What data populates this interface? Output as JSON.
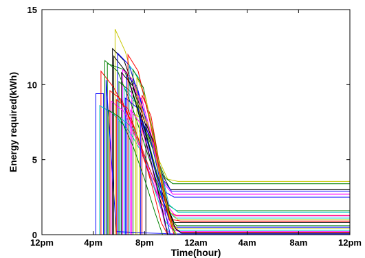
{
  "chart_data": {
    "type": "line",
    "title": "",
    "xlabel": "Time(hour)",
    "ylabel": "Energy required(kWh)",
    "xlim": [
      0,
      24
    ],
    "ylim": [
      0,
      15
    ],
    "grid": false,
    "legend": "none",
    "x_ticks": [
      {
        "value": 0,
        "label": "12pm"
      },
      {
        "value": 4,
        "label": "4pm"
      },
      {
        "value": 8,
        "label": "8pm"
      },
      {
        "value": 12,
        "label": "12am"
      },
      {
        "value": 16,
        "label": "4am"
      },
      {
        "value": 20,
        "label": "8am"
      },
      {
        "value": 24,
        "label": "12pm"
      }
    ],
    "y_ticks": [
      {
        "value": 0,
        "label": "0"
      },
      {
        "value": 5,
        "label": "5"
      },
      {
        "value": 10,
        "label": "10"
      },
      {
        "value": 15,
        "label": "15"
      }
    ],
    "series": [
      {
        "color": "#0000ff",
        "points": [
          [
            0,
            0
          ],
          [
            4.2,
            0
          ],
          [
            4.2,
            9.4
          ],
          [
            4.8,
            9.4
          ],
          [
            4.8,
            0
          ]
        ]
      },
      {
        "color": "#c8c800",
        "points": [
          [
            0,
            0
          ],
          [
            5.7,
            0
          ],
          [
            5.7,
            13.7
          ],
          [
            6.5,
            12.2
          ],
          [
            7.3,
            9.8
          ],
          [
            8.2,
            7.2
          ],
          [
            9.1,
            5.0
          ],
          [
            9.8,
            3.7
          ],
          [
            10.6,
            3.55
          ],
          [
            24,
            3.55
          ]
        ]
      },
      {
        "color": "#008000",
        "points": [
          [
            0,
            0
          ],
          [
            5.1,
            0
          ],
          [
            5.1,
            11.4
          ],
          [
            6.4,
            11.0
          ],
          [
            7.4,
            8.7
          ],
          [
            8.4,
            6.2
          ],
          [
            9.6,
            3.8
          ],
          [
            10.2,
            3.4
          ],
          [
            24,
            3.4
          ]
        ]
      },
      {
        "color": "#000000",
        "points": [
          [
            0,
            0
          ],
          [
            5.5,
            0
          ],
          [
            5.5,
            12.4
          ],
          [
            6.4,
            11.6
          ],
          [
            7.4,
            9.2
          ],
          [
            8.4,
            6.4
          ],
          [
            9.4,
            4.0
          ],
          [
            10.0,
            3.0
          ],
          [
            24,
            3.0
          ]
        ]
      },
      {
        "color": "#0000ff",
        "points": [
          [
            0,
            0
          ],
          [
            5.9,
            0
          ],
          [
            5.9,
            12.1
          ],
          [
            6.8,
            11.3
          ],
          [
            7.8,
            8.6
          ],
          [
            8.7,
            6.0
          ],
          [
            9.5,
            3.6
          ],
          [
            10.1,
            2.9
          ],
          [
            24,
            2.9
          ]
        ]
      },
      {
        "color": "#ff00ff",
        "points": [
          [
            0,
            0
          ],
          [
            6.3,
            0
          ],
          [
            6.3,
            11.0
          ],
          [
            7.0,
            10.4
          ],
          [
            8.0,
            7.8
          ],
          [
            8.9,
            5.2
          ],
          [
            9.6,
            3.3
          ],
          [
            10.2,
            2.7
          ],
          [
            24,
            2.7
          ]
        ]
      },
      {
        "color": "#0000ff",
        "points": [
          [
            0,
            0
          ],
          [
            6.6,
            0
          ],
          [
            6.6,
            10.6
          ],
          [
            7.4,
            9.9
          ],
          [
            8.3,
            7.1
          ],
          [
            9.1,
            4.7
          ],
          [
            9.7,
            2.8
          ],
          [
            10.3,
            2.5
          ],
          [
            24,
            2.5
          ]
        ]
      },
      {
        "color": "#008000",
        "points": [
          [
            0,
            0
          ],
          [
            6.0,
            0
          ],
          [
            6.0,
            10.2
          ],
          [
            7.1,
            9.4
          ],
          [
            8.2,
            6.5
          ],
          [
            9.0,
            4.0
          ],
          [
            9.8,
            2.0
          ],
          [
            10.5,
            1.6
          ],
          [
            24,
            1.6
          ]
        ]
      },
      {
        "color": "#00c8c8",
        "points": [
          [
            0,
            0
          ],
          [
            6.8,
            0
          ],
          [
            6.8,
            11.3
          ],
          [
            7.6,
            10.4
          ],
          [
            8.5,
            7.3
          ],
          [
            9.3,
            4.2
          ],
          [
            9.9,
            2.0
          ],
          [
            10.6,
            1.5
          ],
          [
            24,
            1.5
          ]
        ]
      },
      {
        "color": "#ff0000",
        "points": [
          [
            0,
            0
          ],
          [
            4.6,
            0
          ],
          [
            4.6,
            10.9
          ],
          [
            5.6,
            9.8
          ],
          [
            6.8,
            7.8
          ],
          [
            7.8,
            5.4
          ],
          [
            8.8,
            3.0
          ],
          [
            9.7,
            1.5
          ],
          [
            10.5,
            1.3
          ],
          [
            24,
            1.3
          ]
        ]
      },
      {
        "color": "#ff00ff",
        "points": [
          [
            0,
            0
          ],
          [
            7.0,
            0
          ],
          [
            7.0,
            9.8
          ],
          [
            7.8,
            9.0
          ],
          [
            8.6,
            6.4
          ],
          [
            9.3,
            3.7
          ],
          [
            9.9,
            1.8
          ],
          [
            10.4,
            1.25
          ],
          [
            24,
            1.25
          ]
        ]
      },
      {
        "color": "#00c8c8",
        "points": [
          [
            0,
            0
          ],
          [
            4.5,
            0
          ],
          [
            4.5,
            8.6
          ],
          [
            5.5,
            8.1
          ],
          [
            6.8,
            6.9
          ],
          [
            7.9,
            5.3
          ],
          [
            8.9,
            3.4
          ],
          [
            9.7,
            1.7
          ],
          [
            10.4,
            1.1
          ],
          [
            24,
            1.1
          ]
        ]
      },
      {
        "color": "#c8c800",
        "points": [
          [
            0,
            0
          ],
          [
            7.3,
            0
          ],
          [
            7.3,
            8.0
          ],
          [
            8.2,
            7.5
          ],
          [
            8.9,
            5.0
          ],
          [
            9.5,
            2.8
          ],
          [
            10.0,
            1.5
          ],
          [
            10.6,
            1.0
          ],
          [
            24,
            1.0
          ]
        ]
      },
      {
        "color": "#ff0000",
        "points": [
          [
            0,
            0
          ],
          [
            5.3,
            0
          ],
          [
            5.3,
            9.6
          ],
          [
            6.2,
            9.0
          ],
          [
            7.3,
            6.9
          ],
          [
            8.3,
            4.6
          ],
          [
            9.3,
            2.4
          ],
          [
            10.2,
            1.0
          ],
          [
            10.8,
            0.9
          ],
          [
            24,
            0.9
          ]
        ]
      },
      {
        "color": "#000000",
        "points": [
          [
            0,
            0
          ],
          [
            6.2,
            0
          ],
          [
            6.2,
            10.8
          ],
          [
            7.1,
            9.9
          ],
          [
            8.0,
            7.1
          ],
          [
            8.8,
            4.4
          ],
          [
            9.6,
            2.2
          ],
          [
            10.3,
            0.8
          ],
          [
            24,
            0.8
          ]
        ]
      },
      {
        "color": "#008000",
        "points": [
          [
            0,
            0
          ],
          [
            4.9,
            0
          ],
          [
            4.9,
            11.6
          ],
          [
            5.9,
            10.9
          ],
          [
            7.0,
            8.6
          ],
          [
            8.0,
            6.0
          ],
          [
            9.0,
            3.4
          ],
          [
            9.9,
            1.2
          ],
          [
            10.5,
            0.6
          ],
          [
            24,
            0.6
          ]
        ]
      },
      {
        "color": "#0000ff",
        "points": [
          [
            0,
            0
          ],
          [
            6.5,
            0
          ],
          [
            6.5,
            9.1
          ],
          [
            7.5,
            8.4
          ],
          [
            8.4,
            5.6
          ],
          [
            9.2,
            3.0
          ],
          [
            9.9,
            1.0
          ],
          [
            10.4,
            0.5
          ],
          [
            24,
            0.5
          ]
        ]
      },
      {
        "color": "#c8c800",
        "points": [
          [
            0,
            0
          ],
          [
            7.6,
            0
          ],
          [
            7.6,
            8.7
          ],
          [
            8.3,
            7.2
          ],
          [
            9.0,
            4.6
          ],
          [
            9.6,
            2.3
          ],
          [
            10.1,
            0.8
          ],
          [
            10.6,
            0.4
          ],
          [
            24,
            0.4
          ]
        ]
      },
      {
        "color": "#00c8c8",
        "points": [
          [
            0,
            0
          ],
          [
            6.1,
            0
          ],
          [
            6.1,
            7.8
          ],
          [
            7.2,
            7.0
          ],
          [
            8.1,
            4.9
          ],
          [
            8.9,
            2.7
          ],
          [
            9.6,
            0.9
          ],
          [
            10.2,
            0.3
          ],
          [
            24,
            0.3
          ]
        ]
      },
      {
        "color": "#ff00ff",
        "points": [
          [
            0,
            0
          ],
          [
            5.4,
            0
          ],
          [
            5.4,
            8.9
          ],
          [
            6.4,
            8.2
          ],
          [
            7.5,
            6.1
          ],
          [
            8.5,
            3.9
          ],
          [
            9.4,
            1.7
          ],
          [
            10.1,
            0.4
          ],
          [
            10.7,
            0.2
          ],
          [
            24,
            0.2
          ]
        ]
      },
      {
        "color": "#ff0000",
        "points": [
          [
            0,
            0
          ],
          [
            7.8,
            0
          ],
          [
            7.8,
            9.3
          ],
          [
            8.5,
            7.9
          ],
          [
            9.1,
            5.0
          ],
          [
            9.7,
            2.2
          ],
          [
            10.2,
            0.6
          ],
          [
            10.8,
            0.15
          ],
          [
            24,
            0.15
          ]
        ]
      },
      {
        "color": "#000000",
        "points": [
          [
            0,
            0
          ],
          [
            8.1,
            0
          ],
          [
            8.1,
            7.4
          ],
          [
            8.8,
            6.0
          ],
          [
            9.4,
            3.6
          ],
          [
            9.9,
            1.6
          ],
          [
            10.4,
            0.4
          ],
          [
            10.9,
            0.1
          ],
          [
            24,
            0.1
          ]
        ]
      },
      {
        "color": "#0000ff",
        "points": [
          [
            0,
            0
          ],
          [
            5.0,
            0
          ],
          [
            5.0,
            10.3
          ],
          [
            5.8,
            0.2
          ],
          [
            10.0,
            0.05
          ],
          [
            24,
            0.05
          ]
        ]
      },
      {
        "color": "#008000",
        "points": [
          [
            0,
            0
          ],
          [
            7.1,
            0
          ],
          [
            7.1,
            11.0
          ],
          [
            7.9,
            9.8
          ],
          [
            8.7,
            6.7
          ],
          [
            9.4,
            3.5
          ],
          [
            9.9,
            1.2
          ],
          [
            10.4,
            0.0
          ]
        ]
      },
      {
        "color": "#00c8c8",
        "points": [
          [
            0,
            0
          ],
          [
            6.4,
            0
          ],
          [
            6.4,
            9.8
          ],
          [
            7.3,
            8.8
          ],
          [
            8.2,
            5.8
          ],
          [
            9.0,
            3.0
          ],
          [
            9.6,
            0.6
          ],
          [
            10.0,
            0.0
          ]
        ]
      },
      {
        "color": "#ff0000",
        "points": [
          [
            0,
            0
          ],
          [
            5.8,
            0
          ],
          [
            5.8,
            9.0
          ],
          [
            6.7,
            8.4
          ],
          [
            7.7,
            5.9
          ],
          [
            8.6,
            3.2
          ],
          [
            9.3,
            0.8
          ],
          [
            9.8,
            0.0
          ]
        ]
      },
      {
        "color": "#c8c800",
        "points": [
          [
            0,
            0
          ],
          [
            7.4,
            0
          ],
          [
            7.4,
            10.5
          ],
          [
            8.1,
            9.1
          ],
          [
            8.8,
            6.1
          ],
          [
            9.5,
            3.1
          ],
          [
            10.0,
            0.9
          ],
          [
            10.5,
            0.0
          ]
        ]
      },
      {
        "color": "#ff00ff",
        "points": [
          [
            0,
            0
          ],
          [
            6.9,
            0
          ],
          [
            6.9,
            8.3
          ],
          [
            7.7,
            7.4
          ],
          [
            8.5,
            4.8
          ],
          [
            9.2,
            2.1
          ],
          [
            9.7,
            0.3
          ],
          [
            10.1,
            0.0
          ]
        ]
      },
      {
        "color": "#000000",
        "points": [
          [
            0,
            0
          ],
          [
            5.6,
            0
          ],
          [
            5.6,
            11.9
          ],
          [
            6.6,
            10.8
          ],
          [
            7.6,
            7.9
          ],
          [
            8.5,
            4.9
          ],
          [
            9.3,
            2.0
          ],
          [
            9.8,
            0.0
          ]
        ]
      },
      {
        "color": "#0000ff",
        "points": [
          [
            0,
            0
          ],
          [
            7.7,
            0
          ],
          [
            7.7,
            7.7
          ],
          [
            8.4,
            6.6
          ],
          [
            9.1,
            4.0
          ],
          [
            9.6,
            1.5
          ],
          [
            10.0,
            0.0
          ]
        ]
      },
      {
        "color": "#008000",
        "points": [
          [
            0,
            0
          ],
          [
            5.2,
            0
          ],
          [
            5.2,
            8.3
          ],
          [
            6.1,
            7.8
          ],
          [
            7.1,
            5.9
          ],
          [
            8.0,
            3.7
          ],
          [
            8.8,
            1.5
          ],
          [
            9.4,
            0.0
          ]
        ]
      },
      {
        "color": "#ff0000",
        "points": [
          [
            0,
            0
          ],
          [
            6.7,
            0
          ],
          [
            6.7,
            12.0
          ],
          [
            7.5,
            10.9
          ],
          [
            8.4,
            7.6
          ],
          [
            9.2,
            4.1
          ],
          [
            9.8,
            1.4
          ],
          [
            10.3,
            0.0
          ]
        ]
      }
    ]
  }
}
